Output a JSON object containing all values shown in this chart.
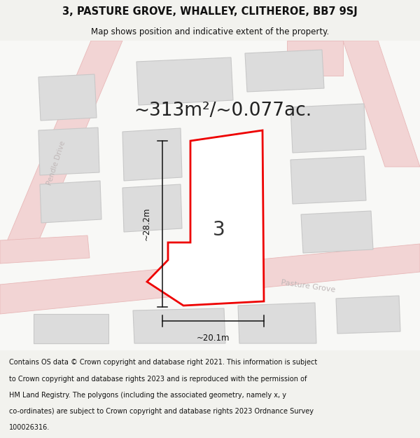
{
  "title_line1": "3, PASTURE GROVE, WHALLEY, CLITHEROE, BB7 9SJ",
  "title_line2": "Map shows position and indicative extent of the property.",
  "area_text": "~313m²/~0.077ac.",
  "label_number": "3",
  "dim_height": "~28.2m",
  "dim_width": "~20.1m",
  "footer_lines": [
    "Contains OS data © Crown copyright and database right 2021. This information is subject",
    "to Crown copyright and database rights 2023 and is reproduced with the permission of",
    "HM Land Registry. The polygons (including the associated geometry, namely x, y",
    "co-ordinates) are subject to Crown copyright and database rights 2023 Ordnance Survey",
    "100026316."
  ],
  "bg_color": "#f2f2ee",
  "map_bg": "#f8f8f6",
  "road_fill": "#f2d4d4",
  "road_edge": "#e8b8b8",
  "block_fill": "#dcdcdc",
  "block_edge": "#c8c8c8",
  "plot_fill": "#ffffff",
  "plot_edge": "#ee0000",
  "dim_color": "#111111",
  "text_dark": "#222222",
  "road_label": "#c0b8b8",
  "title_color": "#111111",
  "footer_color": "#111111"
}
